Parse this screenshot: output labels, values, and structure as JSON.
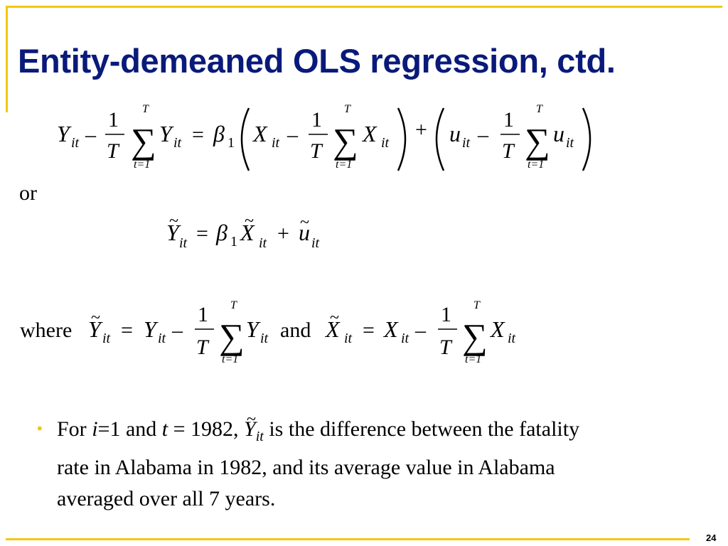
{
  "slide": {
    "title": "Entity-demeaned OLS regression, ctd.",
    "page_number": "24",
    "or_word": "or",
    "where_word": "where",
    "and_word": "and"
  },
  "equations": {
    "sum_upper": "T",
    "sum_lower": "t=1",
    "one": "1",
    "T": "T",
    "beta": "β",
    "beta_sub": "1",
    "sub_it": "it"
  },
  "bullet": {
    "part1": "For ",
    "i": "i",
    "part2": "=1 and ",
    "t": "t",
    "part3": " = 1982, ",
    "part4": " is the difference between the fatality",
    "line2": "rate in Alabama in 1982, and its average value in Alabama",
    "line3": "averaged over all 7 years."
  },
  "colors": {
    "title": "#0a1a7a",
    "accent": "#f2c811"
  }
}
